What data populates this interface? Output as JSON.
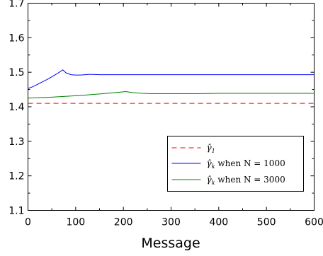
{
  "chart_data": {
    "type": "line",
    "xlabel": "Message",
    "ylabel": "",
    "xlim": [
      0,
      600
    ],
    "ylim": [
      1.1,
      1.7
    ],
    "xticks": [
      0,
      100,
      200,
      300,
      400,
      500,
      600
    ],
    "yticks": [
      1.1,
      1.2,
      1.3,
      1.4,
      1.5,
      1.6,
      1.7
    ],
    "xtick_labels": [
      "0",
      "100",
      "200",
      "300",
      "400",
      "500",
      "600"
    ],
    "ytick_labels": [
      "1.1",
      "1.2",
      "1.3",
      "1.4",
      "1.5",
      "1.6",
      "1.7"
    ],
    "grid": false,
    "legend_position": "lower-right",
    "series": [
      {
        "name": "γ̂1",
        "legend_label": [
          "γ̂",
          "1",
          ""
        ],
        "color": "#ff0000",
        "dash": "dashed",
        "x": [
          0,
          600
        ],
        "y": [
          1.41,
          1.41
        ]
      },
      {
        "name": "γ̂k when N = 1000",
        "legend_label": [
          "γ̂",
          "k",
          " when N = 1000"
        ],
        "color": "#0000ff",
        "dash": "solid",
        "x": [
          0,
          10,
          20,
          30,
          40,
          50,
          60,
          70,
          73,
          80,
          90,
          100,
          110,
          120,
          130,
          150,
          200,
          300,
          400,
          500,
          600
        ],
        "y": [
          1.453,
          1.458,
          1.465,
          1.472,
          1.479,
          1.487,
          1.495,
          1.504,
          1.507,
          1.498,
          1.493,
          1.492,
          1.492,
          1.493,
          1.494,
          1.493,
          1.493,
          1.493,
          1.493,
          1.493,
          1.493
        ]
      },
      {
        "name": "γ̂k when N = 3000",
        "legend_label": [
          "γ̂",
          "k",
          " when N = 3000"
        ],
        "color": "#008000",
        "dash": "solid",
        "x": [
          0,
          50,
          100,
          150,
          190,
          205,
          220,
          240,
          260,
          300,
          350,
          400,
          450,
          500,
          600
        ],
        "y": [
          1.425,
          1.428,
          1.432,
          1.437,
          1.442,
          1.444,
          1.441,
          1.439,
          1.438,
          1.438,
          1.438,
          1.439,
          1.439,
          1.439,
          1.439
        ]
      }
    ]
  }
}
